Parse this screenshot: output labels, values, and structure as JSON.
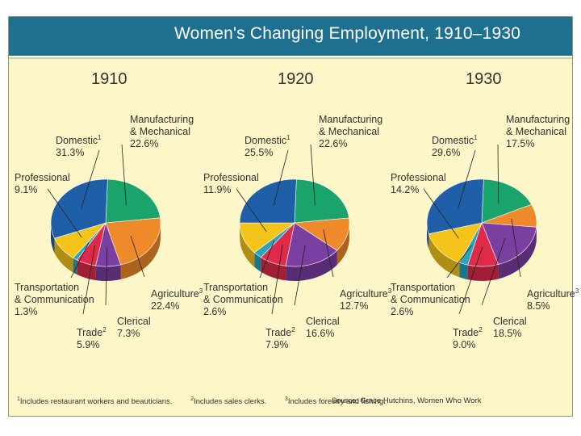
{
  "chart_data": {
    "type": "pie",
    "title": "Women's Changing Employment, 1910–1930",
    "category_colors": {
      "Domestic": "#1f5fa8",
      "Manufacturing & Mechanical": "#1aa36b",
      "Agriculture": "#ef8a2a",
      "Clerical": "#7a3fa0",
      "Trade": "#e02a4a",
      "Transportation & Communication": "#2aa3c0",
      "Professional": "#f4c41a"
    },
    "charts": [
      {
        "year": "1910",
        "slices": [
          {
            "category": "Domestic",
            "value": 31.3,
            "value_label": "31.3%",
            "footnote": "1"
          },
          {
            "category": "Manufacturing & Mechanical",
            "value": 22.6,
            "value_label": "22.6%",
            "footnote": ""
          },
          {
            "category": "Agriculture",
            "value": 22.4,
            "value_label": "22.4%",
            "footnote": "3"
          },
          {
            "category": "Clerical",
            "value": 7.3,
            "value_label": "7.3%",
            "footnote": ""
          },
          {
            "category": "Trade",
            "value": 5.9,
            "value_label": "5.9%",
            "footnote": "2"
          },
          {
            "category": "Transportation & Communication",
            "value": 1.3,
            "value_label": "1.3%",
            "footnote": ""
          },
          {
            "category": "Professional",
            "value": 9.1,
            "value_label": "9.1%",
            "footnote": ""
          }
        ]
      },
      {
        "year": "1920",
        "slices": [
          {
            "category": "Domestic",
            "value": 25.5,
            "value_label": "25.5%",
            "footnote": "1"
          },
          {
            "category": "Manufacturing & Mechanical",
            "value": 22.6,
            "value_label": "22.6%",
            "footnote": ""
          },
          {
            "category": "Agriculture",
            "value": 12.7,
            "value_label": "12.7%",
            "footnote": "3"
          },
          {
            "category": "Clerical",
            "value": 16.6,
            "value_label": "16.6%",
            "footnote": ""
          },
          {
            "category": "Trade",
            "value": 7.9,
            "value_label": "7.9%",
            "footnote": "2"
          },
          {
            "category": "Transportation & Communication",
            "value": 2.6,
            "value_label": "2.6%",
            "footnote": ""
          },
          {
            "category": "Professional",
            "value": 11.9,
            "value_label": "11.9%",
            "footnote": ""
          }
        ]
      },
      {
        "year": "1930",
        "slices": [
          {
            "category": "Domestic",
            "value": 29.6,
            "value_label": "29.6%",
            "footnote": "1"
          },
          {
            "category": "Manufacturing & Mechanical",
            "value": 17.5,
            "value_label": "17.5%",
            "footnote": ""
          },
          {
            "category": "Agriculture",
            "value": 8.5,
            "value_label": "8.5%",
            "footnote": "3"
          },
          {
            "category": "Clerical",
            "value": 18.5,
            "value_label": "18.5%",
            "footnote": ""
          },
          {
            "category": "Trade",
            "value": 9.0,
            "value_label": "9.0%",
            "footnote": "2"
          },
          {
            "category": "Transportation & Communication",
            "value": 2.6,
            "value_label": "2.6%",
            "footnote": ""
          },
          {
            "category": "Professional",
            "value": 14.2,
            "value_label": "14.2%",
            "footnote": ""
          }
        ]
      }
    ],
    "footnotes": [
      {
        "mark": "1",
        "text": "Includes restaurant workers and beauticians."
      },
      {
        "mark": "2",
        "text": "Includes sales clerks."
      },
      {
        "mark": "3",
        "text": "Includes forestry and fishing."
      }
    ],
    "source": "Source: Grace Hutchins, Women Who Work"
  }
}
